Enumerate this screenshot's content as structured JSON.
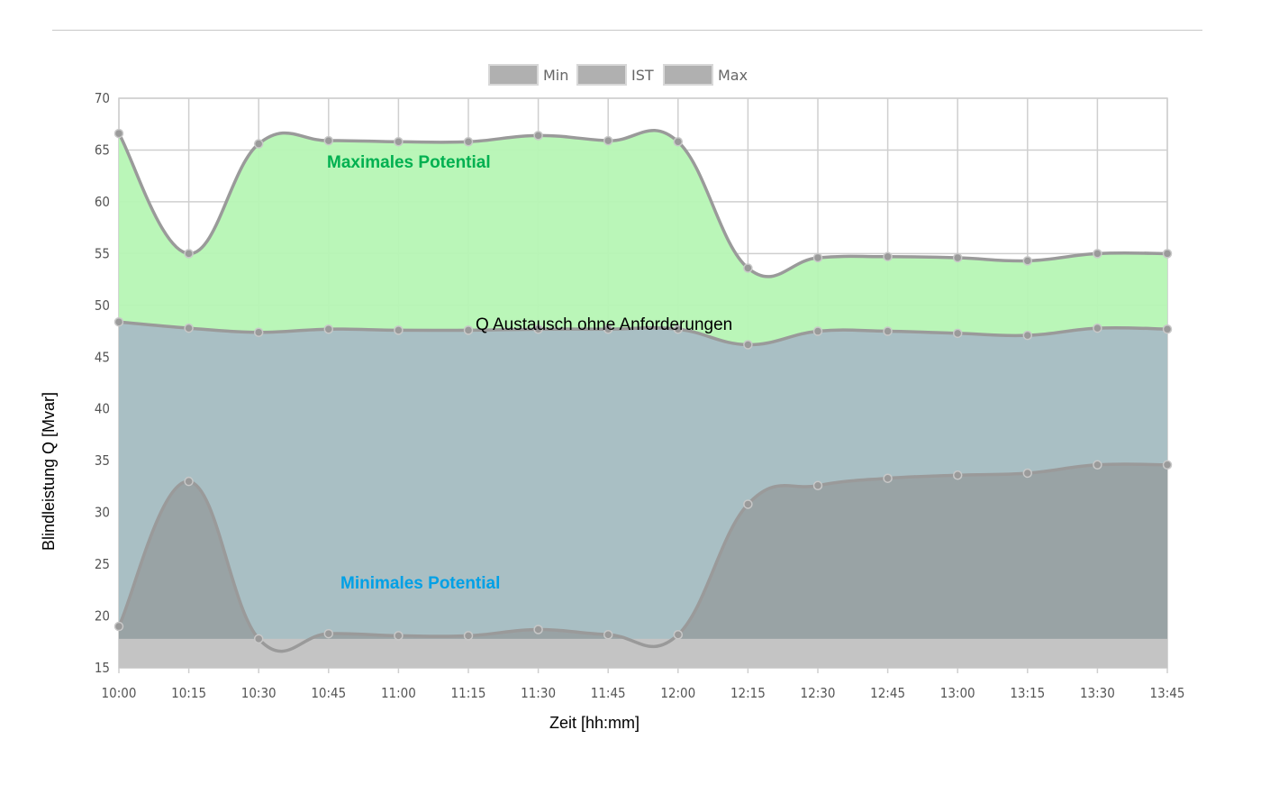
{
  "chart_data": {
    "type": "area",
    "title": "",
    "xlabel": "Zeit [hh:mm]",
    "ylabel": "Blindleistung Q [Mvar]",
    "ylim": [
      15,
      70
    ],
    "yticks": [
      15,
      20,
      25,
      30,
      35,
      40,
      45,
      50,
      55,
      60,
      65,
      70
    ],
    "grid": true,
    "legend_position": "top-center",
    "categories": [
      "10:00",
      "10:15",
      "10:30",
      "10:45",
      "11:00",
      "11:15",
      "11:30",
      "11:45",
      "12:00",
      "12:15",
      "12:30",
      "12:45",
      "13:00",
      "13:15",
      "13:30",
      "13:45"
    ],
    "series": [
      {
        "name": "Min",
        "color": "#8c8c8c",
        "values": [
          19,
          33,
          17.8,
          18.3,
          18.1,
          18.1,
          18.7,
          18.2,
          18.2,
          30.8,
          32.6,
          33.3,
          33.6,
          33.8,
          34.6,
          34.6
        ]
      },
      {
        "name": "IST",
        "color": "#a9bfc4",
        "values": [
          48.4,
          47.8,
          47.4,
          47.7,
          47.6,
          47.6,
          47.7,
          47.7,
          47.7,
          46.2,
          47.5,
          47.5,
          47.3,
          47.1,
          47.8,
          47.7
        ]
      },
      {
        "name": "Max",
        "color": "#b6f5b4",
        "values": [
          66.6,
          55,
          65.6,
          65.9,
          65.8,
          65.8,
          66.4,
          65.9,
          65.8,
          53.6,
          54.6,
          54.7,
          54.6,
          54.3,
          55,
          55
        ]
      }
    ],
    "base_floor": 17.8,
    "annotations": {
      "max": "Maximales Potential",
      "ist": "Q Austausch ohne Anforderungen",
      "min": "Minimales Potential"
    },
    "colors": {
      "max_text": "#00b050",
      "ist_text": "#000000",
      "min_text": "#00a0e6",
      "floor": "#c4c4c4",
      "line": "#9a9a9a",
      "grid": "#cfcfcf",
      "legend_swatch": "#b0b0b0"
    }
  }
}
